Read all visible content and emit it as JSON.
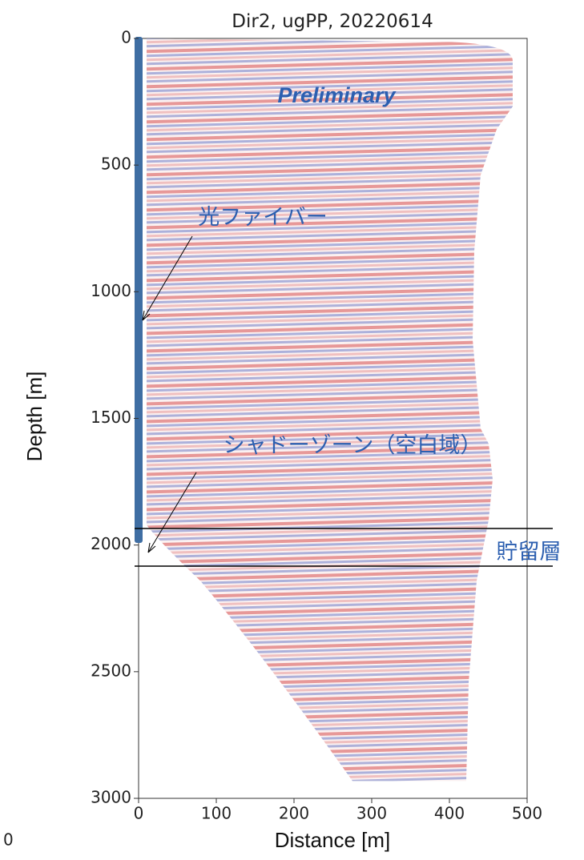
{
  "chart_data": {
    "type": "image",
    "title": "Dir2, ugPP, 20220614",
    "xlabel": "Distance [m]",
    "ylabel": "Depth [m]",
    "xlim": [
      0,
      500
    ],
    "ylim": [
      3000,
      0
    ],
    "xticks": [
      0,
      100,
      200,
      300,
      400,
      500
    ],
    "yticks": [
      0,
      500,
      1000,
      1500,
      2000,
      2500,
      3000
    ],
    "annotations": [
      "Preliminary",
      "光ファイバー",
      "シャドーゾーン（空白域）",
      "貯留層"
    ],
    "fragment": "0"
  }
}
